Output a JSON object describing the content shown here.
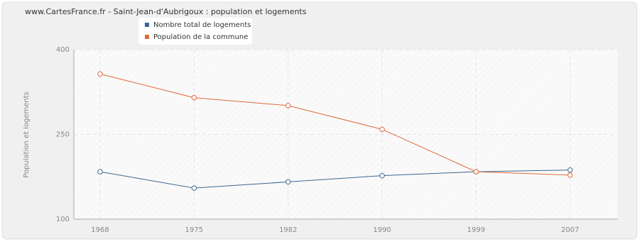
{
  "chart_data": {
    "type": "line",
    "title": "www.CartesFrance.fr - Saint-Jean-d'Aubrigoux : population et logements",
    "y_label": "Population et logements",
    "categories": [
      "1968",
      "1975",
      "1982",
      "1990",
      "1999",
      "2007"
    ],
    "series": [
      {
        "name": "Nombre total de logements",
        "color": "#3a6792",
        "values": [
          184,
          155,
          166,
          177,
          184,
          187
        ]
      },
      {
        "name": "Population de la commune",
        "color": "#e06a3a",
        "values": [
          357,
          315,
          301,
          259,
          184,
          178
        ]
      }
    ],
    "ylim": [
      100,
      400
    ],
    "yticks": [
      100,
      250,
      400
    ],
    "grid": true
  }
}
